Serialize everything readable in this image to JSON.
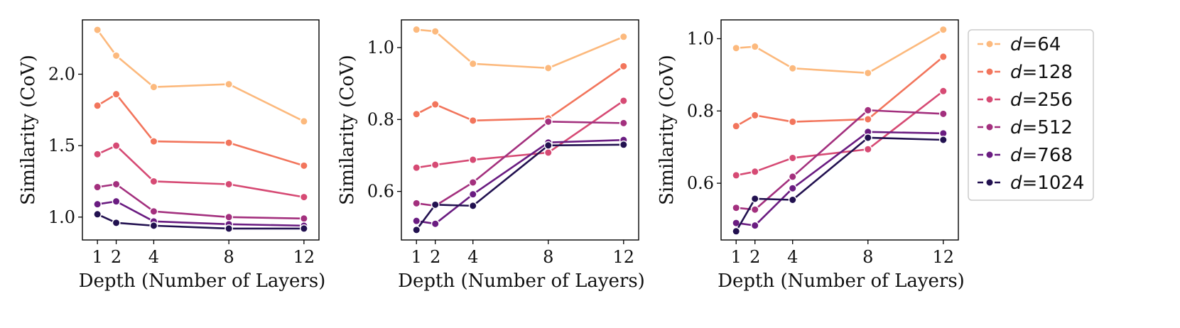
{
  "chart_data": [
    {
      "type": "line",
      "xlabel": "Depth (Number of Layers)",
      "ylabel": "Similarity (CoV)",
      "x": [
        1,
        2,
        4,
        8,
        12
      ],
      "xticks": [
        "1",
        "2",
        "4",
        "8",
        "12"
      ],
      "xlim": [
        0.2,
        12.8
      ],
      "ylim": [
        0.84,
        2.38
      ],
      "yticks": [
        1.0,
        1.5,
        2.0
      ],
      "ytick_labels": [
        "1.0",
        "1.5",
        "2.0"
      ],
      "series": [
        {
          "name": "d=64",
          "values": [
            2.31,
            2.13,
            1.91,
            1.93,
            1.67
          ]
        },
        {
          "name": "d=128",
          "values": [
            1.78,
            1.86,
            1.53,
            1.52,
            1.36
          ]
        },
        {
          "name": "d=256",
          "values": [
            1.44,
            1.5,
            1.25,
            1.23,
            1.14
          ]
        },
        {
          "name": "d=512",
          "values": [
            1.21,
            1.23,
            1.04,
            1.0,
            0.99
          ]
        },
        {
          "name": "d=768",
          "values": [
            1.09,
            1.11,
            0.97,
            0.95,
            0.94
          ]
        },
        {
          "name": "d=1024",
          "values": [
            1.02,
            0.96,
            0.94,
            0.92,
            0.92
          ]
        }
      ]
    },
    {
      "type": "line",
      "xlabel": "Depth (Number of Layers)",
      "ylabel": "Similarity (CoV)",
      "x": [
        1,
        2,
        4,
        8,
        12
      ],
      "xticks": [
        "1",
        "2",
        "4",
        "8",
        "12"
      ],
      "xlim": [
        0.2,
        12.8
      ],
      "ylim": [
        0.465,
        1.077
      ],
      "yticks": [
        0.6,
        0.8,
        1.0
      ],
      "ytick_labels": [
        "0.6",
        "0.8",
        "1.0"
      ],
      "series": [
        {
          "name": "d=64",
          "values": [
            1.05,
            1.045,
            0.955,
            0.943,
            1.03
          ]
        },
        {
          "name": "d=128",
          "values": [
            0.815,
            0.842,
            0.797,
            0.803,
            0.948
          ]
        },
        {
          "name": "d=256",
          "values": [
            0.666,
            0.674,
            0.688,
            0.708,
            0.852
          ]
        },
        {
          "name": "d=512",
          "values": [
            0.567,
            0.56,
            0.625,
            0.794,
            0.79
          ]
        },
        {
          "name": "d=768",
          "values": [
            0.518,
            0.51,
            0.592,
            0.736,
            0.743
          ]
        },
        {
          "name": "d=1024",
          "values": [
            0.493,
            0.563,
            0.56,
            0.728,
            0.73
          ]
        }
      ]
    },
    {
      "type": "line",
      "xlabel": "Depth (Number of Layers)",
      "ylabel": "Similarity (CoV)",
      "x": [
        1,
        2,
        4,
        8,
        12
      ],
      "xticks": [
        "1",
        "2",
        "4",
        "8",
        "12"
      ],
      "xlim": [
        0.2,
        12.8
      ],
      "ylim": [
        0.443,
        1.052
      ],
      "yticks": [
        0.6,
        0.8,
        1.0
      ],
      "ytick_labels": [
        "0.6",
        "0.8",
        "1.0"
      ],
      "series": [
        {
          "name": "d=64",
          "values": [
            0.974,
            0.978,
            0.918,
            0.905,
            1.025
          ]
        },
        {
          "name": "d=128",
          "values": [
            0.758,
            0.788,
            0.77,
            0.777,
            0.95
          ]
        },
        {
          "name": "d=256",
          "values": [
            0.622,
            0.632,
            0.67,
            0.694,
            0.855
          ]
        },
        {
          "name": "d=512",
          "values": [
            0.532,
            0.527,
            0.618,
            0.802,
            0.792
          ]
        },
        {
          "name": "d=768",
          "values": [
            0.49,
            0.483,
            0.586,
            0.742,
            0.738
          ]
        },
        {
          "name": "d=1024",
          "values": [
            0.467,
            0.557,
            0.554,
            0.726,
            0.72
          ]
        }
      ]
    }
  ],
  "legend": {
    "items": [
      {
        "prefix": "d",
        "suffix": "=64",
        "color": "#fcb97d"
      },
      {
        "prefix": "d",
        "suffix": "=128",
        "color": "#f2755c"
      },
      {
        "prefix": "d",
        "suffix": "=256",
        "color": "#d64a74"
      },
      {
        "prefix": "d",
        "suffix": "=512",
        "color": "#a3307e"
      },
      {
        "prefix": "d",
        "suffix": "=768",
        "color": "#6a1c81"
      },
      {
        "prefix": "d",
        "suffix": "=1024",
        "color": "#221150"
      }
    ]
  }
}
